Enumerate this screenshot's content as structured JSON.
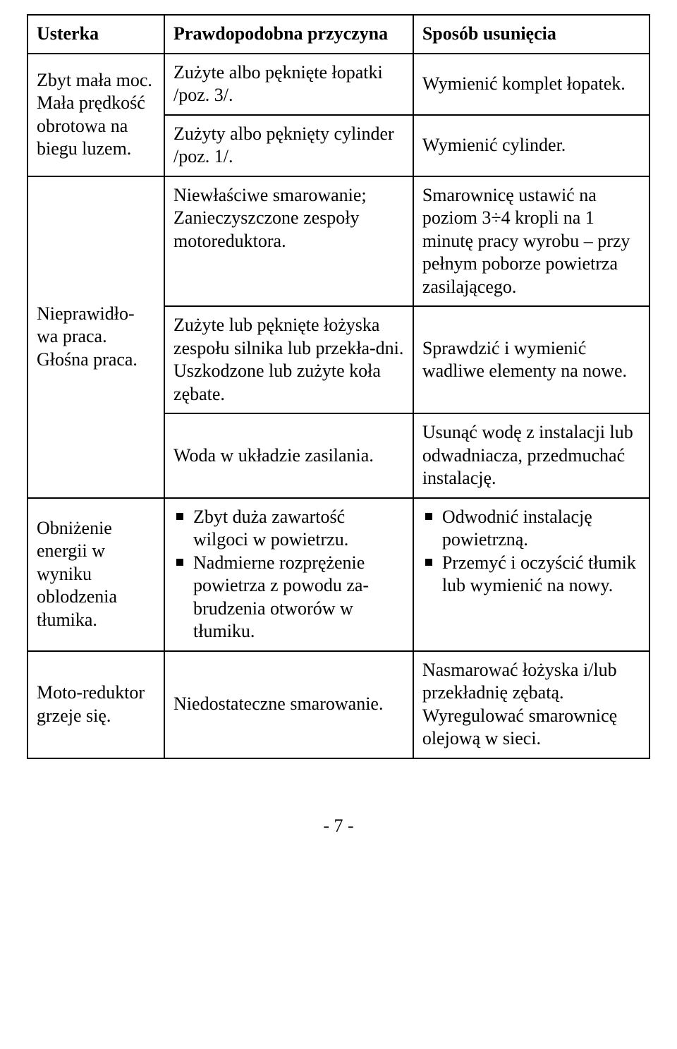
{
  "headers": {
    "c1": "Usterka",
    "c2": "Prawdopodobna przyczyna",
    "c3": "Sposób usunięcia"
  },
  "row1": {
    "c1": "Zbyt mała moc.\nMała prędkość obrotowa na biegu luzem.",
    "c2a": "Zużyte albo pęknięte łopatki /poz. 3/.",
    "c3a": "Wymienić komplet łopatek.",
    "c2b": "Zużyty albo pęknięty cylinder /poz. 1/.",
    "c3b": "Wymienić cylinder."
  },
  "row2": {
    "c1": "Nieprawidło-wa praca. Głośna praca.",
    "c2a": "Niewłaściwe smarowanie; Zanieczyszczone zespoły motoreduktora.",
    "c3a": "Smarownicę ustawić na poziom 3÷4 kropli na 1 minutę pracy wyrobu – przy pełnym poborze powietrza zasilającego.",
    "c2b": "Zużyte lub pęknięte łożyska zespołu silnika lub przekła-dni.\nUszkodzone lub zużyte koła zębate.",
    "c3b": "Sprawdzić i wymienić wadliwe elementy na nowe.",
    "c2c": "Woda w układzie zasilania.",
    "c3c": "Usunąć wodę z instalacji lub odwadniacza, przedmuchać instalację."
  },
  "row3": {
    "c1": "Obniżenie energii w wyniku oblodzenia tłumika.",
    "c2_li1": "Zbyt duża zawartość wilgoci w powietrzu.",
    "c2_li2": "Nadmierne rozprężenie powietrza z powodu za-brudzenia otworów w tłumiku.",
    "c3_li1": "Odwodnić instalację powietrzną.",
    "c3_li2": "Przemyć i oczyścić tłumik lub wymienić na nowy."
  },
  "row4": {
    "c1": "Moto-reduktor grzeje się.",
    "c2": "Niedostateczne smarowanie.",
    "c3": "Nasmarować łożyska i/lub przekładnię zębatą. Wyregulować smarownicę olejową w sieci."
  },
  "pagenum": "- 7 -"
}
